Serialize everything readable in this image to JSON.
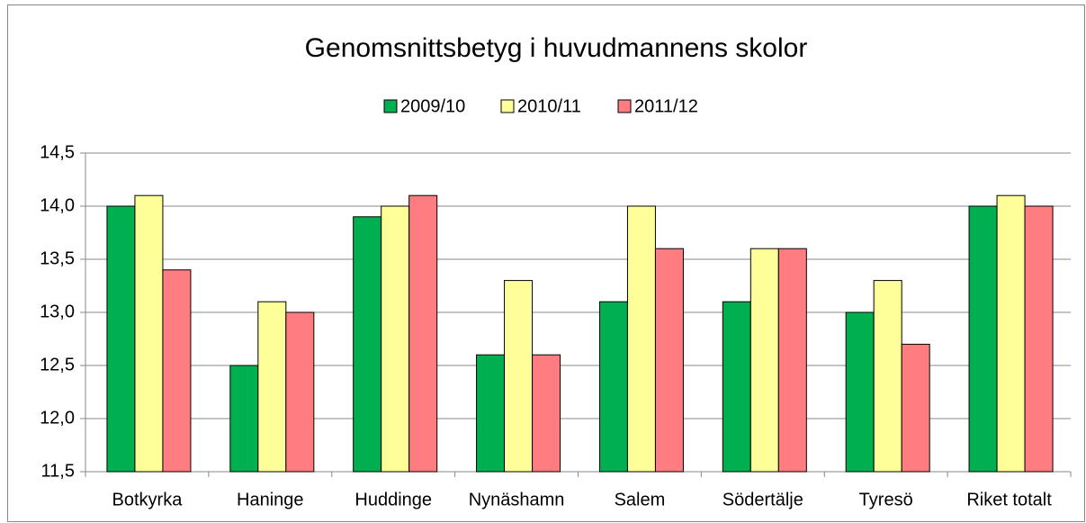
{
  "chart_data": {
    "type": "bar",
    "title": "Genomsnittsbetyg i huvudmannens skolor",
    "categories": [
      "Botkyrka",
      "Haninge",
      "Huddinge",
      "Nynäshamn",
      "Salem",
      "Södertälje",
      "Tyresö",
      "Riket totalt"
    ],
    "series": [
      {
        "name": "2009/10",
        "color": "#00b050",
        "values": [
          14.0,
          12.5,
          13.9,
          12.6,
          13.1,
          13.1,
          13.0,
          14.0
        ]
      },
      {
        "name": "2010/11",
        "color": "#ffff99",
        "values": [
          14.1,
          13.1,
          14.0,
          13.3,
          14.0,
          13.6,
          13.3,
          14.1
        ]
      },
      {
        "name": "2011/12",
        "color": "#ff7c80",
        "values": [
          13.4,
          13.0,
          14.1,
          12.6,
          13.6,
          13.6,
          12.7,
          14.0
        ]
      }
    ],
    "ylim": [
      11.5,
      14.5
    ],
    "yticks": [
      {
        "value": 11.5,
        "label": "11,5"
      },
      {
        "value": 12.0,
        "label": "12,0"
      },
      {
        "value": 12.5,
        "label": "12,5"
      },
      {
        "value": 13.0,
        "label": "13,0"
      },
      {
        "value": 13.5,
        "label": "13,5"
      },
      {
        "value": 14.0,
        "label": "14,0"
      },
      {
        "value": 14.5,
        "label": "14,5"
      }
    ],
    "grid": true,
    "legend": "top"
  }
}
